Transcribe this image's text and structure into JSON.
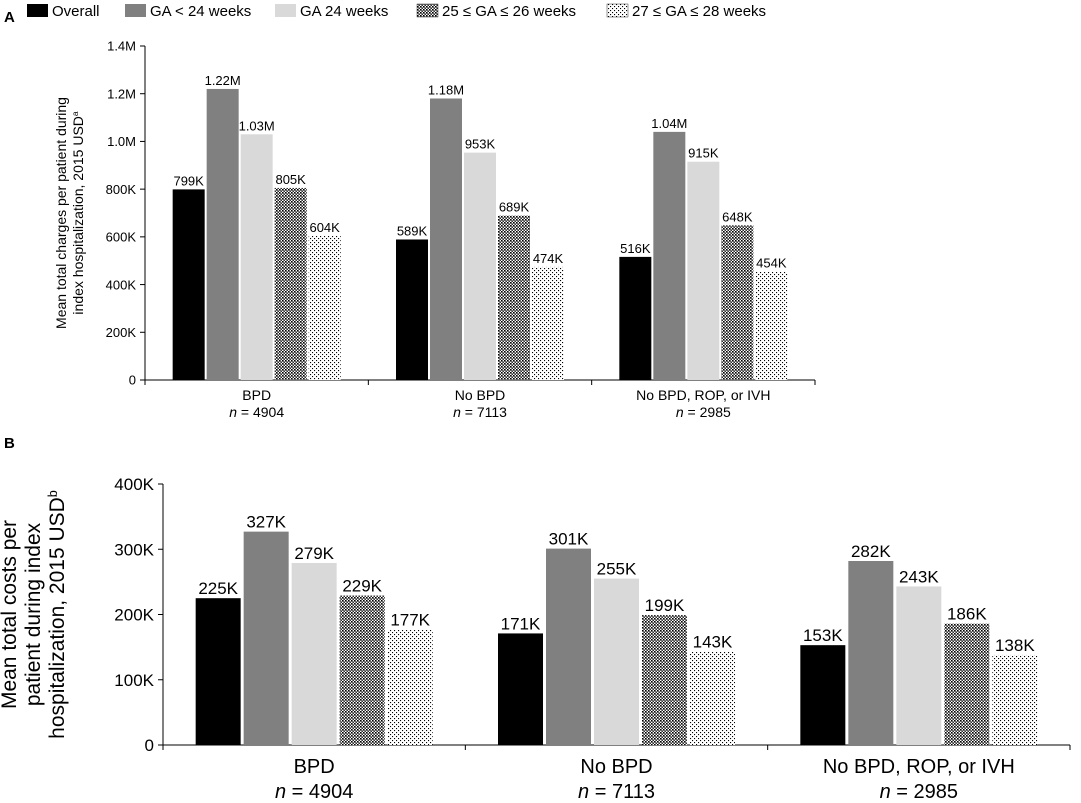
{
  "legend": {
    "items": [
      {
        "label": "Overall",
        "pattern": "solid-black"
      },
      {
        "label": "GA < 24 weeks",
        "pattern": "solid-darkgray"
      },
      {
        "label": "GA 24 weeks",
        "pattern": "solid-lightgray"
      },
      {
        "label": "25 ≤ GA ≤ 26 weeks",
        "pattern": "dense-dots"
      },
      {
        "label": "27 ≤ GA ≤ 28 weeks",
        "pattern": "sparse-dots"
      }
    ]
  },
  "colors": {
    "overall": "#000000",
    "ga_lt_24": "#808080",
    "ga_24": "#d9d9d9",
    "axis": "#000000"
  },
  "chart_data": [
    {
      "panel": "A",
      "type": "bar",
      "ylabel_line1": "Mean total charges per patient during",
      "ylabel_line2": "index hospitalization, 2015 USD",
      "ylabel_sup": "a",
      "ylim": [
        0,
        1400000
      ],
      "yticks": [
        {
          "value": 0,
          "label": "0"
        },
        {
          "value": 200000,
          "label": "200K"
        },
        {
          "value": 400000,
          "label": "400K"
        },
        {
          "value": 600000,
          "label": "600K"
        },
        {
          "value": 800000,
          "label": "800K"
        },
        {
          "value": 1000000,
          "label": "1.0M"
        },
        {
          "value": 1200000,
          "label": "1.2M"
        },
        {
          "value": 1400000,
          "label": "1.4M"
        }
      ],
      "categories": [
        {
          "name": "BPD",
          "n_prefix": "n",
          "n_value": "= 4904"
        },
        {
          "name": "No BPD",
          "n_prefix": "n",
          "n_value": "= 7113"
        },
        {
          "name": "No BPD, ROP, or IVH",
          "n_prefix": "n",
          "n_value": "= 2985"
        }
      ],
      "series": [
        {
          "name": "Overall",
          "values": [
            799000,
            589000,
            516000
          ],
          "labels": [
            "799K",
            "589K",
            "516K"
          ]
        },
        {
          "name": "GA < 24 weeks",
          "values": [
            1220000,
            1180000,
            1040000
          ],
          "labels": [
            "1.22M",
            "1.18M",
            "1.04M"
          ]
        },
        {
          "name": "GA 24 weeks",
          "values": [
            1030000,
            953000,
            915000
          ],
          "labels": [
            "1.03M",
            "953K",
            "915K"
          ]
        },
        {
          "name": "25 ≤ GA ≤ 26 weeks",
          "values": [
            805000,
            689000,
            648000
          ],
          "labels": [
            "805K",
            "689K",
            "648K"
          ]
        },
        {
          "name": "27 ≤ GA ≤ 28 weeks",
          "values": [
            604000,
            474000,
            454000
          ],
          "labels": [
            "604K",
            "474K",
            "454K"
          ]
        }
      ]
    },
    {
      "panel": "B",
      "type": "bar",
      "ylabel_line1": "Mean total costs per",
      "ylabel_line2": "patient during index",
      "ylabel_line3": "hospitalization, 2015 USD",
      "ylabel_sup": "b",
      "ylim": [
        0,
        400000
      ],
      "yticks": [
        {
          "value": 0,
          "label": "0"
        },
        {
          "value": 100000,
          "label": "100K"
        },
        {
          "value": 200000,
          "label": "200K"
        },
        {
          "value": 300000,
          "label": "300K"
        },
        {
          "value": 400000,
          "label": "400K"
        }
      ],
      "categories": [
        {
          "name": "BPD",
          "n_prefix": "n",
          "n_value": "= 4904"
        },
        {
          "name": "No BPD",
          "n_prefix": "n",
          "n_value": "= 7113"
        },
        {
          "name": "No BPD, ROP, or IVH",
          "n_prefix": "n",
          "n_value": "= 2985"
        }
      ],
      "series": [
        {
          "name": "Overall",
          "values": [
            225000,
            171000,
            153000
          ],
          "labels": [
            "225K",
            "171K",
            "153K"
          ]
        },
        {
          "name": "GA < 24 weeks",
          "values": [
            327000,
            301000,
            282000
          ],
          "labels": [
            "327K",
            "301K",
            "282K"
          ]
        },
        {
          "name": "GA 24 weeks",
          "values": [
            279000,
            255000,
            243000
          ],
          "labels": [
            "279K",
            "255K",
            "243K"
          ]
        },
        {
          "name": "25 ≤ GA ≤ 26 weeks",
          "values": [
            229000,
            199000,
            186000
          ],
          "labels": [
            "229K",
            "199K",
            "186K"
          ]
        },
        {
          "name": "27 ≤ GA ≤ 28 weeks",
          "values": [
            177000,
            143000,
            138000
          ],
          "labels": [
            "177K",
            "143K",
            "138K"
          ]
        }
      ]
    }
  ]
}
